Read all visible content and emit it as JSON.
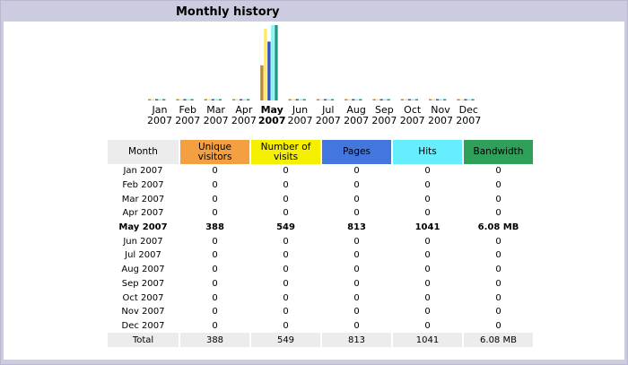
{
  "title": "Monthly history",
  "months": [
    {
      "label_month": "Jan",
      "label_year": "2007",
      "row_label": "Jan 2007",
      "unique_visitors": "0",
      "visits": "0",
      "pages": "0",
      "hits": "0",
      "bandwidth": "0",
      "current": false
    },
    {
      "label_month": "Feb",
      "label_year": "2007",
      "row_label": "Feb 2007",
      "unique_visitors": "0",
      "visits": "0",
      "pages": "0",
      "hits": "0",
      "bandwidth": "0",
      "current": false
    },
    {
      "label_month": "Mar",
      "label_year": "2007",
      "row_label": "Mar 2007",
      "unique_visitors": "0",
      "visits": "0",
      "pages": "0",
      "hits": "0",
      "bandwidth": "0",
      "current": false
    },
    {
      "label_month": "Apr",
      "label_year": "2007",
      "row_label": "Apr 2007",
      "unique_visitors": "0",
      "visits": "0",
      "pages": "0",
      "hits": "0",
      "bandwidth": "0",
      "current": false
    },
    {
      "label_month": "May",
      "label_year": "2007",
      "row_label": "May 2007",
      "unique_visitors": "388",
      "visits": "549",
      "pages": "813",
      "hits": "1041",
      "bandwidth": "6.08 MB",
      "current": true
    },
    {
      "label_month": "Jun",
      "label_year": "2007",
      "row_label": "Jun 2007",
      "unique_visitors": "0",
      "visits": "0",
      "pages": "0",
      "hits": "0",
      "bandwidth": "0",
      "current": false
    },
    {
      "label_month": "Jul",
      "label_year": "2007",
      "row_label": "Jul 2007",
      "unique_visitors": "0",
      "visits": "0",
      "pages": "0",
      "hits": "0",
      "bandwidth": "0",
      "current": false
    },
    {
      "label_month": "Aug",
      "label_year": "2007",
      "row_label": "Aug 2007",
      "unique_visitors": "0",
      "visits": "0",
      "pages": "0",
      "hits": "0",
      "bandwidth": "0",
      "current": false
    },
    {
      "label_month": "Sep",
      "label_year": "2007",
      "row_label": "Sep 2007",
      "unique_visitors": "0",
      "visits": "0",
      "pages": "0",
      "hits": "0",
      "bandwidth": "0",
      "current": false
    },
    {
      "label_month": "Oct",
      "label_year": "2007",
      "row_label": "Oct 2007",
      "unique_visitors": "0",
      "visits": "0",
      "pages": "0",
      "hits": "0",
      "bandwidth": "0",
      "current": false
    },
    {
      "label_month": "Nov",
      "label_year": "2007",
      "row_label": "Nov 2007",
      "unique_visitors": "0",
      "visits": "0",
      "pages": "0",
      "hits": "0",
      "bandwidth": "0",
      "current": false
    },
    {
      "label_month": "Dec",
      "label_year": "2007",
      "row_label": "Dec 2007",
      "unique_visitors": "0",
      "visits": "0",
      "pages": "0",
      "hits": "0",
      "bandwidth": "0",
      "current": false
    }
  ],
  "table": {
    "headers": {
      "month": "Month",
      "unique_visitors": "Unique visitors",
      "visits": "Number of visits",
      "pages": "Pages",
      "hits": "Hits",
      "bandwidth": "Bandwidth"
    },
    "total": {
      "label": "Total",
      "unique_visitors": "388",
      "visits": "549",
      "pages": "813",
      "hits": "1041",
      "bandwidth": "6.08 MB"
    }
  },
  "colors": {
    "unique_visitors": "#f4a040",
    "visits": "#f4f000",
    "pages": "#4477dd",
    "hits": "#66eeff",
    "bandwidth": "#2ea05a",
    "bar_unique_visitors": "#b88a40",
    "bar_visits": "#ffe866",
    "bar_pages": "#3355bb",
    "bar_hits": "#88f4f0",
    "bar_bandwidth": "#229988"
  },
  "chart_data": {
    "type": "bar",
    "categories": [
      "Jan 2007",
      "Feb 2007",
      "Mar 2007",
      "Apr 2007",
      "May 2007",
      "Jun 2007",
      "Jul 2007",
      "Aug 2007",
      "Sep 2007",
      "Oct 2007",
      "Nov 2007",
      "Dec 2007"
    ],
    "series": [
      {
        "name": "Unique visitors",
        "values": [
          0,
          0,
          0,
          0,
          388,
          0,
          0,
          0,
          0,
          0,
          0,
          0
        ]
      },
      {
        "name": "Number of visits",
        "values": [
          0,
          0,
          0,
          0,
          549,
          0,
          0,
          0,
          0,
          0,
          0,
          0
        ]
      },
      {
        "name": "Pages",
        "values": [
          0,
          0,
          0,
          0,
          813,
          0,
          0,
          0,
          0,
          0,
          0,
          0
        ]
      },
      {
        "name": "Hits",
        "values": [
          0,
          0,
          0,
          0,
          1041,
          0,
          0,
          0,
          0,
          0,
          0,
          0
        ]
      },
      {
        "name": "Bandwidth",
        "values": [
          0,
          0,
          0,
          0,
          6.08,
          0,
          0,
          0,
          0,
          0,
          0,
          0
        ]
      }
    ],
    "title": "Monthly history",
    "xlabel": "",
    "ylabel": "",
    "grid": false,
    "legend": "none"
  }
}
